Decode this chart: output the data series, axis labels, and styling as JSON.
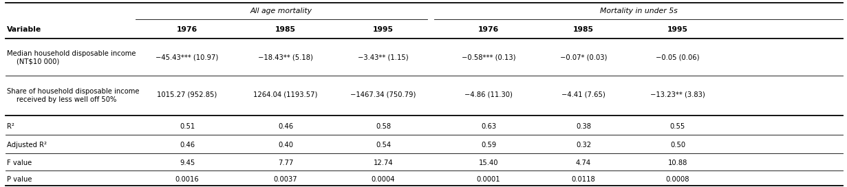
{
  "title_left": "All age mortality",
  "title_right": "Mortality in under 5s",
  "col_headers": [
    "Variable",
    "1976",
    "1985",
    "1995",
    "1976",
    "1985",
    "1995"
  ],
  "rows": [
    {
      "label": "Median household disposable income\n(NT$10 000)",
      "values": [
        "−45.43*** (10.97)",
        "−18.43** (5.18)",
        "−3.43** (1.15)",
        "−0.58*** (0.13)",
        "−0.07* (0.03)",
        "−0.05 (0.06)"
      ],
      "tall": true
    },
    {
      "label": "Share of household disposable income\nreceived by less well off 50%",
      "values": [
        "1015.27 (952.85)",
        "1264.04 (1193.57)",
        "−1467.34 (750.79)",
        "−4.86 (11.30)",
        "−4.41 (7.65)",
        "−13.23** (3.83)"
      ],
      "tall": true
    },
    {
      "label": "R²",
      "values": [
        "0.51",
        "0.46",
        "0.58",
        "0.63",
        "0.38",
        "0.55"
      ],
      "tall": false
    },
    {
      "label": "Adjusted R²",
      "values": [
        "0.46",
        "0.40",
        "0.54",
        "0.59",
        "0.32",
        "0.50"
      ],
      "tall": false
    },
    {
      "label": "F value",
      "values": [
        "9.45",
        "7.77",
        "12.74",
        "15.40",
        "4.74",
        "10.88"
      ],
      "tall": false
    },
    {
      "label": "P value",
      "values": [
        "0.0016",
        "0.0037",
        "0.0004",
        "0.0001",
        "0.0118",
        "0.0008"
      ],
      "tall": false
    }
  ],
  "background_color": "#ffffff",
  "text_color": "#000000",
  "font_size": 7.2,
  "header_font_size": 7.8,
  "fig_width": 12.31,
  "fig_height": 2.72,
  "dpi": 100
}
